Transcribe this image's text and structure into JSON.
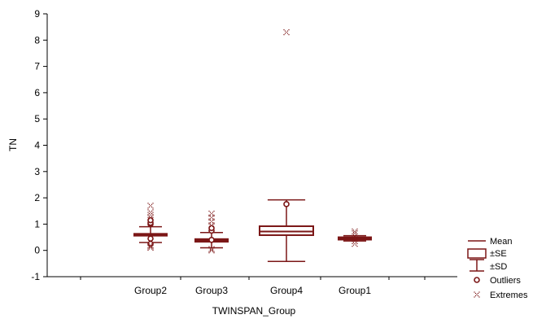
{
  "chart_data": {
    "type": "box",
    "xlabel": "TWINSPAN_Group",
    "ylabel": "TN",
    "ylim": [
      -1,
      9
    ],
    "yticks": [
      -1,
      0,
      1,
      2,
      3,
      4,
      5,
      6,
      7,
      8,
      9
    ],
    "categories": [
      "Group2",
      "Group3",
      "Group4",
      "Group1"
    ],
    "color": "#7b1616",
    "boxes": [
      {
        "category": "Group2",
        "mean": 0.6,
        "box_low": 0.56,
        "box_high": 0.63,
        "whisker_low": 0.3,
        "whisker_high": 0.9,
        "outliers": [
          0.25,
          0.45,
          1.0,
          1.05,
          1.15
        ],
        "extremes": [
          0.1,
          0.15,
          0.2,
          1.25,
          1.35,
          1.45,
          1.7
        ]
      },
      {
        "category": "Group3",
        "mean": 0.38,
        "box_low": 0.33,
        "box_high": 0.43,
        "whisker_low": 0.1,
        "whisker_high": 0.68,
        "outliers": [
          0.4,
          0.75,
          0.85
        ],
        "extremes": [
          0.0,
          0.05,
          0.95,
          1.1,
          1.25,
          1.4
        ]
      },
      {
        "category": "Group4",
        "mean": 0.72,
        "box_low": 0.58,
        "box_high": 0.92,
        "whisker_low": -0.42,
        "whisker_high": 1.92,
        "outliers": [
          1.76
        ],
        "extremes": [
          8.3
        ]
      },
      {
        "category": "Group1",
        "mean": 0.45,
        "box_low": 0.41,
        "box_high": 0.5,
        "whisker_low": 0.36,
        "whisker_high": 0.56,
        "outliers": [],
        "extremes": [
          0.25,
          0.35,
          0.65,
          0.72
        ]
      }
    ],
    "legend": {
      "position": "bottom-right",
      "items": [
        {
          "type": "mean",
          "label": "Mean"
        },
        {
          "type": "box",
          "label": "±SE"
        },
        {
          "type": "whisker",
          "label": "±SD"
        },
        {
          "type": "outlier",
          "label": "Outliers"
        },
        {
          "type": "extreme",
          "label": "Extremes"
        }
      ]
    }
  }
}
